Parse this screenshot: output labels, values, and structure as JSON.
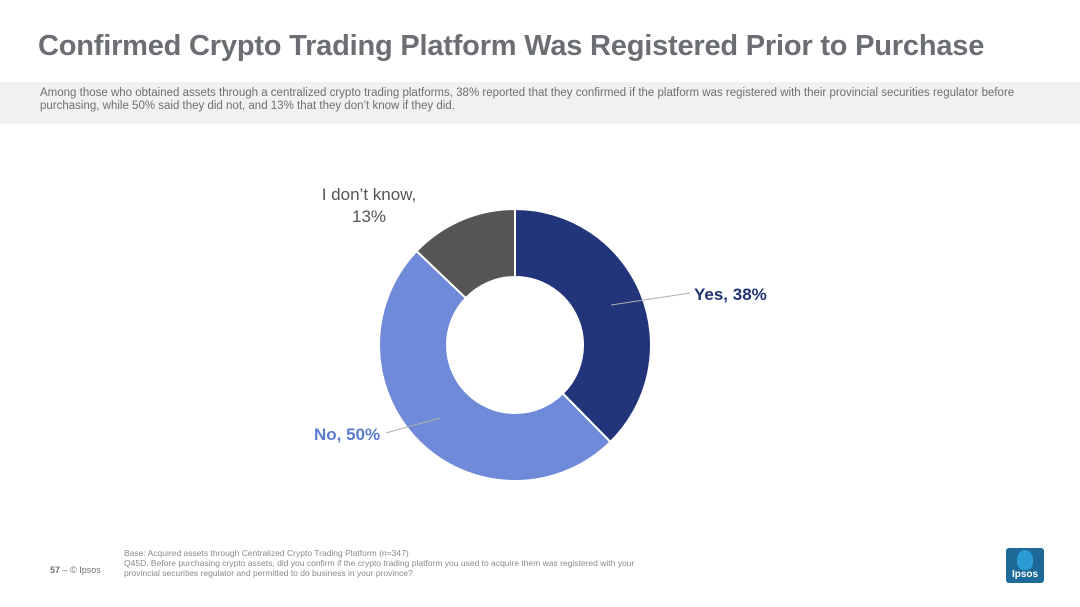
{
  "title": "Confirmed Crypto Trading Platform Was Registered Prior to Purchase",
  "subtitle": "Among those who obtained assets through a centralized crypto trading platforms, 38% reported that they confirmed if the platform was registered with their provincial securities regulator before purchasing, while 50% said they did not, and 13% that they don’t know if they did.",
  "chart_data": {
    "type": "pie",
    "donut": true,
    "categories": [
      "Yes",
      "No",
      "I don’t know"
    ],
    "values": [
      38,
      50,
      13
    ],
    "colors": [
      "#22357a",
      "#6f8ad8",
      "#555555"
    ],
    "labels": [
      "Yes, 38%",
      "No, 50%",
      "I don’t know,",
      "13%"
    ]
  },
  "footer": {
    "page_number": "57",
    "page_sep": "–",
    "copyright": "© Ipsos",
    "base": "Base: Acquired assets through Centralized Crypto Trading Platform (n=347)",
    "question": "Q45D. Before purchasing crypto assets, did you confirm if the crypto trading platform you used to acquire them was registered with your provincial securities regulator and permitted to do business in your province?"
  },
  "logo": {
    "text": "Ipsos",
    "color": "#1d6a98"
  }
}
